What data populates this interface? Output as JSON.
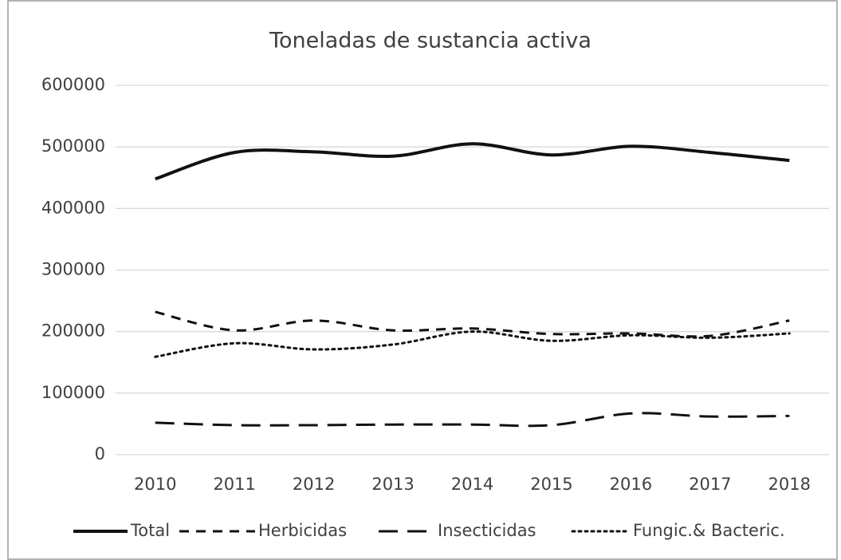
{
  "chart_data": {
    "type": "line",
    "title": "Toneladas de sustancia activa",
    "categories": [
      "2010",
      "2011",
      "2012",
      "2013",
      "2014",
      "2015",
      "2016",
      "2017",
      "2018"
    ],
    "series": [
      {
        "name": "Total",
        "color": "#111111",
        "dash": "solid",
        "values": [
          448000,
          491000,
          492000,
          485000,
          505000,
          487000,
          501000,
          491000,
          478000
        ]
      },
      {
        "name": "Herbicidas",
        "color": "#111111",
        "dash": "dashed",
        "values": [
          232000,
          202000,
          218000,
          202000,
          205000,
          196000,
          197000,
          193000,
          218000
        ]
      },
      {
        "name": "Insecticidas",
        "color": "#111111",
        "dash": "longdash",
        "values": [
          52000,
          48000,
          48000,
          49000,
          49000,
          48000,
          67000,
          62000,
          63000
        ]
      },
      {
        "name": "Fungic.& Bacteric.",
        "color": "#111111",
        "dash": "dotted",
        "values": [
          159000,
          181000,
          171000,
          179000,
          200000,
          185000,
          194000,
          190000,
          197000
        ]
      }
    ],
    "ylim": [
      0,
      600000
    ],
    "yticks": [
      0,
      100000,
      200000,
      300000,
      400000,
      500000,
      600000
    ],
    "grid": true,
    "smooth": true,
    "legend": "bottom"
  }
}
